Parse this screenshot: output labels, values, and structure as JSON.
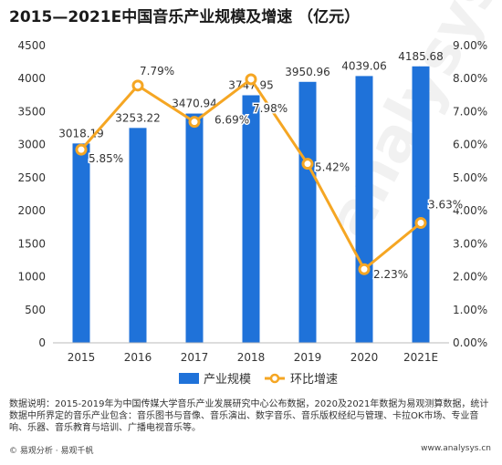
{
  "title": "2015—2021E中国音乐产业规模及增速 （亿元）",
  "chart_data": {
    "type": "bar",
    "title": "2015—2021E中国音乐产业规模及增速 （亿元）",
    "categories": [
      "2015",
      "2016",
      "2017",
      "2018",
      "2019",
      "2020",
      "2021E"
    ],
    "series": [
      {
        "name": "产业规模",
        "type": "bar",
        "axis": "left",
        "color": "#1f72d9",
        "values": [
          3018.19,
          3253.22,
          3470.94,
          3747.95,
          3950.96,
          4039.06,
          4185.68
        ],
        "labels": [
          "3018.19",
          "3253.22",
          "3470.94",
          "3747.95",
          "3950.96",
          "4039.06",
          "4185.68"
        ]
      },
      {
        "name": "环比增速",
        "type": "line",
        "axis": "right",
        "color": "#f5a623",
        "values": [
          5.85,
          7.79,
          6.69,
          7.98,
          5.42,
          2.23,
          3.63
        ],
        "labels": [
          "5.85%",
          "7.79%",
          "6.69%",
          "7.98%",
          "5.42%",
          "2.23%",
          "3.63%"
        ]
      }
    ],
    "y_left": {
      "range": [
        0,
        4500
      ],
      "ticks": [
        "0",
        "500",
        "1000",
        "1500",
        "2000",
        "2500",
        "3000",
        "3500",
        "4000",
        "4500"
      ]
    },
    "y_right": {
      "range": [
        0,
        9
      ],
      "ticks": [
        "0.00%",
        "1.00%",
        "2.00%",
        "3.00%",
        "4.00%",
        "5.00%",
        "6.00%",
        "7.00%",
        "8.00%",
        "9.00%"
      ]
    },
    "legend_position": "bottom",
    "grid": false
  },
  "note": "数据说明：2015-2019年为中国传媒大学音乐产业发展研究中心公布数据，2020及2021年数据为易观测算数据，统计数据中所界定的音乐产业包含：音乐图书与音像、音乐演出、数字音乐、音乐版权经纪与管理、卡拉OK市场、专业音响、乐器、音乐教育与培训、广播电视音乐等。",
  "footer": {
    "left": "© 易观分析 · 易观千帆",
    "right": "www.analysys.cn"
  },
  "watermark": "analysys 易观"
}
